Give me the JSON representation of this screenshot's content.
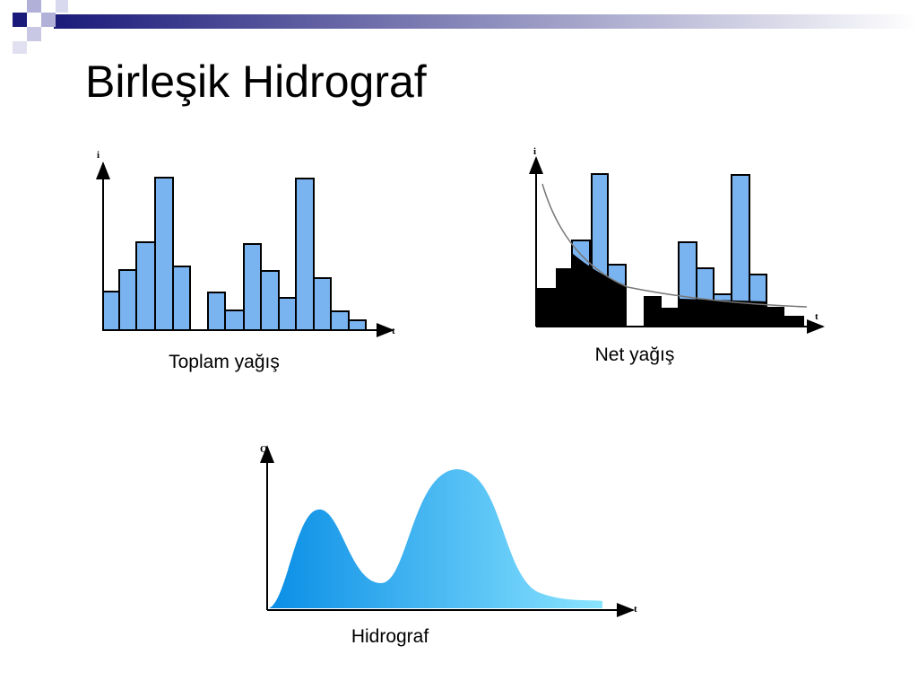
{
  "title": "Birleşik Hidrograf",
  "panels": [
    {
      "caption": "Toplam yağış",
      "y_axis": "i",
      "x_axis": "t"
    },
    {
      "caption": "Net yağış",
      "y_axis": "i",
      "x_axis": "t"
    },
    {
      "caption": "Hidrograf",
      "y_axis": "Q",
      "x_axis": "t"
    }
  ]
}
